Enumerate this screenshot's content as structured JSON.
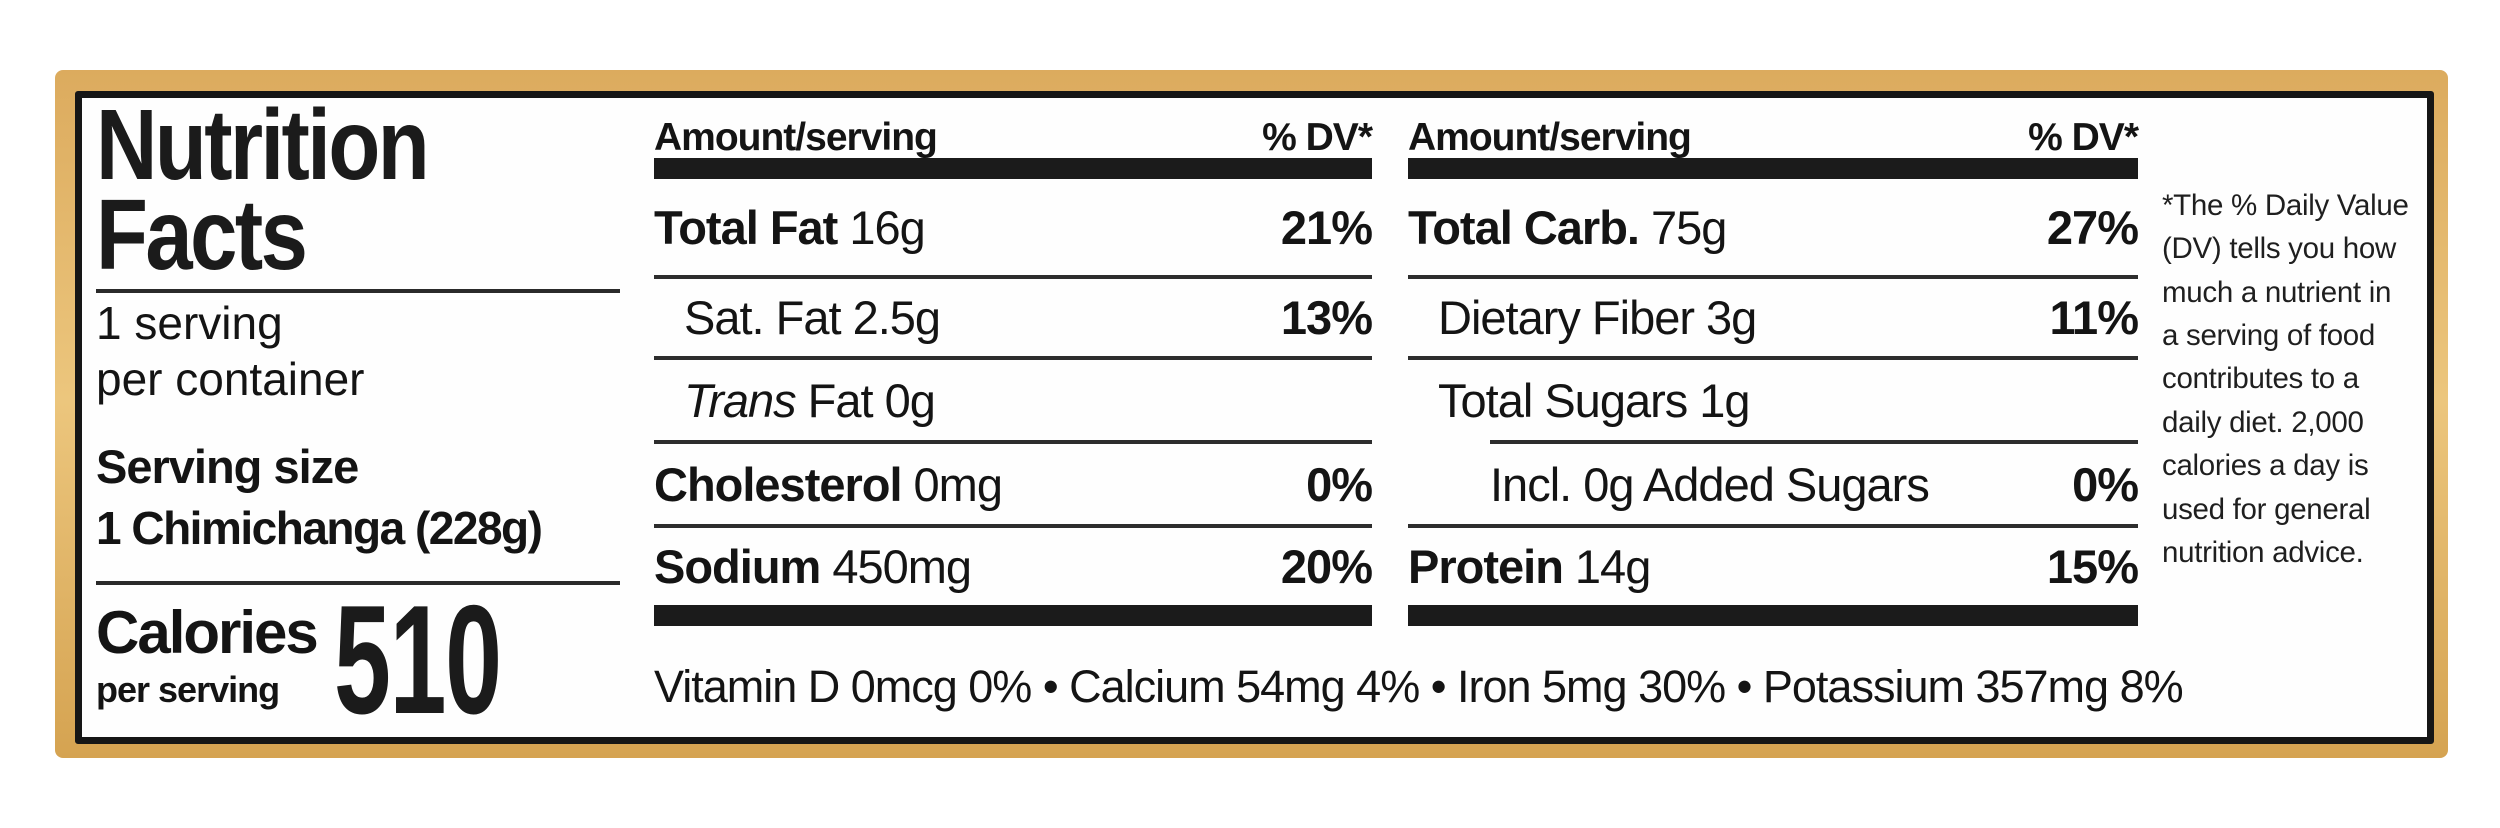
{
  "colors": {
    "frame_gold": "#E2B266",
    "ink": "#161616",
    "background": "#FFFFFF"
  },
  "label": {
    "title": "Nutrition\nFacts",
    "servings_per_container": "1 serving\nper container",
    "serving_size": {
      "label": "Serving size",
      "value": "1 Chimichanga (228g)"
    },
    "calories": {
      "label": "Calories",
      "sublabel": "per serving",
      "value": "510"
    },
    "columns": [
      {
        "header": {
          "amount": "Amount/serving",
          "dv": "% DV*"
        },
        "rows": [
          {
            "name": "Total Fat",
            "value": "16g",
            "dv": "21%"
          },
          {
            "name": "Sat. Fat",
            "value": "2.5g",
            "dv": "13%"
          },
          {
            "name": "Trans",
            "value": "Fat 0g",
            "dv": ""
          },
          {
            "name": "Cholesterol",
            "value": "0mg",
            "dv": "0%"
          },
          {
            "name": "Sodium",
            "value": "450mg",
            "dv": "20%"
          }
        ]
      },
      {
        "header": {
          "amount": "Amount/serving",
          "dv": "% DV*"
        },
        "rows": [
          {
            "name": "Total Carb.",
            "value": "75g",
            "dv": "27%"
          },
          {
            "name": "Dietary Fiber",
            "value": "3g",
            "dv": "11%"
          },
          {
            "name": "Total Sugars",
            "value": "1g",
            "dv": ""
          },
          {
            "name": "Incl.",
            "value": "0g Added Sugars",
            "dv": "0%"
          },
          {
            "name": "Protein",
            "value": "14g",
            "dv": "15%"
          }
        ]
      }
    ],
    "micronutrients": "Vitamin D 0mcg 0% • Calcium 54mg 4% • Iron 5mg 30% • Potassium 357mg 8%",
    "footnote": "*The % Daily Value\n(DV) tells you how\nmuch a nutrient in\na serving of food\ncontributes to a\ndaily diet. 2,000\ncalories a day is\nused for general\nnutrition advice."
  }
}
